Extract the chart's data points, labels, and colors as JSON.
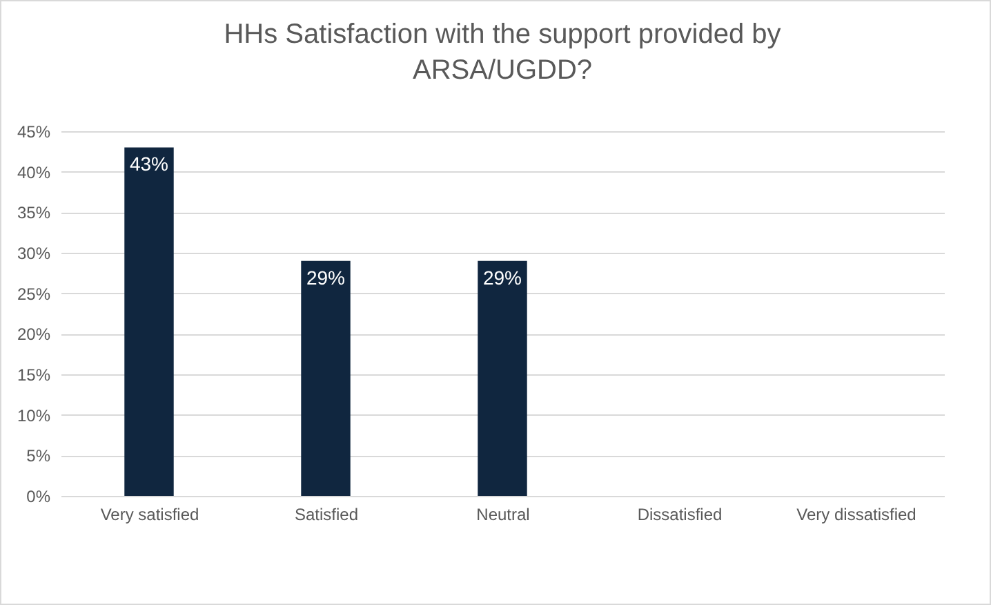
{
  "chart_data": {
    "type": "bar",
    "title": "HHs Satisfaction with the support provided by ARSA/UGDD?",
    "categories": [
      "Very satisfied",
      "Satisfied",
      "Neutral",
      "Dissatisfied",
      "Very dissatisfied"
    ],
    "values": [
      43,
      29,
      29,
      0,
      0
    ],
    "value_labels": [
      "43%",
      "29%",
      "29%",
      null,
      null
    ],
    "color": "#10263f",
    "ylim": [
      0,
      45
    ],
    "yticks": [
      {
        "value": 0,
        "label": "0%"
      },
      {
        "value": 5,
        "label": "5%"
      },
      {
        "value": 10,
        "label": "10%"
      },
      {
        "value": 15,
        "label": "15%"
      },
      {
        "value": 20,
        "label": "20%"
      },
      {
        "value": 25,
        "label": "25%"
      },
      {
        "value": 30,
        "label": "30%"
      },
      {
        "value": 35,
        "label": "35%"
      },
      {
        "value": 40,
        "label": "40%"
      },
      {
        "value": 45,
        "label": "45%"
      }
    ],
    "grid": "y"
  }
}
